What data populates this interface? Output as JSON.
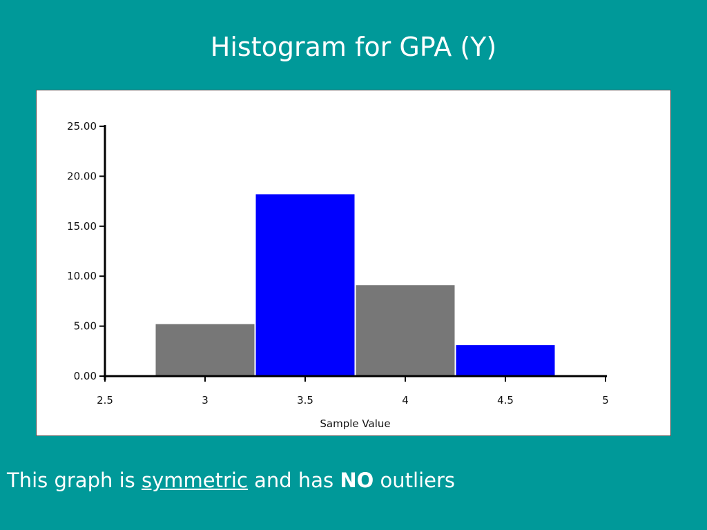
{
  "slide": {
    "title": "Histogram for GPA (Y)",
    "caption": {
      "before": "This graph is",
      "emphasis_underline": "symmetric",
      "middle": "and has",
      "emphasis_bold": "NO",
      "after": "outliers"
    }
  },
  "colors": {
    "background": "#009999",
    "bar_gray": "#777777",
    "bar_blue": "#0000ff"
  },
  "chart_data": {
    "type": "bar",
    "title": "",
    "xlabel": "Sample Value",
    "ylabel": "",
    "xlim": [
      2.5,
      5
    ],
    "ylim": [
      0,
      25
    ],
    "x_ticks": [
      "2.5",
      "3",
      "3.5",
      "4",
      "4.5",
      "5"
    ],
    "y_ticks": [
      "0.00",
      "5.00",
      "10.00",
      "15.00",
      "20.00",
      "25.00"
    ],
    "bins": [
      {
        "start": 2.75,
        "end": 3.25,
        "value": 5.2,
        "color": "#777777"
      },
      {
        "start": 3.25,
        "end": 3.75,
        "value": 18.2,
        "color": "#0000ff"
      },
      {
        "start": 3.75,
        "end": 4.25,
        "value": 9.1,
        "color": "#777777"
      },
      {
        "start": 4.25,
        "end": 4.75,
        "value": 3.1,
        "color": "#0000ff"
      }
    ],
    "grid": false,
    "legend": "none"
  }
}
